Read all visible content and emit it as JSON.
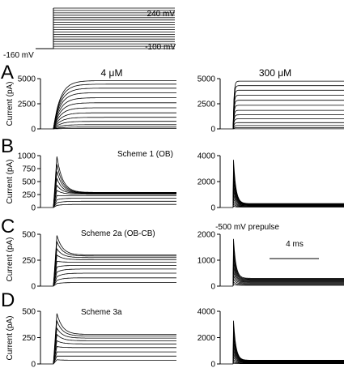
{
  "protocol": {
    "holding_label": "-160 mV",
    "top_label": "240 mV",
    "bottom_label": "-100 mV",
    "n_steps": 18
  },
  "columns": {
    "left_title": "4 μM",
    "right_title": "300 μM"
  },
  "scalebar": {
    "label": "4 ms",
    "duration_ms": 4
  },
  "ylabel": "Current (pA)",
  "chart_data": [
    {
      "type": "line",
      "panel": "A",
      "column": "4 μM",
      "label": "",
      "ylabel": "Current (pA)",
      "yticks": [
        "0",
        "2500",
        "5000"
      ],
      "ylim": [
        0,
        5000
      ],
      "x_ms": [
        0,
        16
      ],
      "traces_ss_pA": [
        4800,
        4450,
        4050,
        3600,
        3100,
        2600,
        2100,
        1600,
        1150,
        750,
        420,
        180,
        40
      ],
      "tau_ms": 0.9
    },
    {
      "type": "line",
      "panel": "A",
      "column": "300 μM",
      "label": "",
      "ylabel": "",
      "yticks": [
        "0",
        "2500",
        "5000"
      ],
      "ylim": [
        0,
        5000
      ],
      "x_ms": [
        0,
        16
      ],
      "traces_ss_pA": [
        4750,
        4300,
        3850,
        3350,
        2850,
        2350,
        1850,
        1400,
        1000,
        620,
        330,
        120,
        10
      ],
      "tau_ms": 0.12
    },
    {
      "type": "line",
      "panel": "B",
      "column": "4 μM",
      "label": "Scheme 1 (OB)",
      "ylabel": "Current (pA)",
      "yticks": [
        "0",
        "250",
        "500",
        "750",
        "1000"
      ],
      "ylim": [
        0,
        1000
      ],
      "x_ms": [
        0,
        16
      ],
      "traces_peak_pA": [
        990,
        840,
        700,
        560,
        430,
        330,
        230,
        150,
        90,
        40
      ],
      "traces_ss_pA": [
        290,
        285,
        280,
        275,
        270,
        255,
        225,
        180,
        120,
        60
      ]
    },
    {
      "type": "line",
      "panel": "B",
      "column": "300 μM",
      "label": "",
      "ylabel": "",
      "yticks": [
        "0",
        "2000",
        "4000"
      ],
      "ylim": [
        0,
        4000
      ],
      "x_ms": [
        0,
        16
      ],
      "traces_peak_pA": [
        3750,
        3300,
        2900,
        2500,
        2100,
        1700,
        1350,
        1000,
        700,
        450,
        250,
        100
      ],
      "traces_ss_pA": [
        300,
        280,
        260,
        240,
        220,
        200,
        180,
        150,
        120,
        90,
        60,
        30
      ]
    },
    {
      "type": "line",
      "panel": "C",
      "column": "4 μM",
      "label": "Scheme 2a (OB-CB)",
      "annotation": "-500 mV prepulse",
      "ylabel": "Current (pA)",
      "yticks": [
        "0",
        "250",
        "500"
      ],
      "ylim": [
        0,
        500
      ],
      "x_ms": [
        0,
        16
      ],
      "traces_peak_pA": [
        490,
        430,
        360,
        300,
        240,
        185,
        135,
        90,
        55,
        25
      ],
      "traces_ss_pA": [
        300,
        290,
        275,
        255,
        230,
        200,
        165,
        125,
        80,
        35
      ]
    },
    {
      "type": "line",
      "panel": "C",
      "column": "300 μM",
      "label": "",
      "ylabel": "",
      "yticks": [
        "0",
        "1000",
        "2000"
      ],
      "ylim": [
        0,
        2000
      ],
      "x_ms": [
        0,
        16
      ],
      "traces_peak_pA": [
        1850,
        1600,
        1380,
        1160,
        950,
        760,
        580,
        420,
        280,
        160,
        70
      ],
      "traces_ss_pA": [
        300,
        275,
        250,
        225,
        200,
        175,
        150,
        120,
        90,
        60,
        30
      ]
    },
    {
      "type": "line",
      "panel": "D",
      "column": "4 μM",
      "label": "Scheme 3a",
      "ylabel": "Current (pA)",
      "yticks": [
        "0",
        "250",
        "500"
      ],
      "ylim": [
        0,
        500
      ],
      "x_ms": [
        0,
        16
      ],
      "traces_peak_pA": [
        480,
        410,
        340,
        280,
        220,
        165,
        115,
        75,
        40
      ],
      "traces_ss_pA": [
        280,
        265,
        245,
        220,
        190,
        155,
        115,
        75,
        35
      ]
    },
    {
      "type": "line",
      "panel": "D",
      "column": "300 μM",
      "label": "",
      "ylabel": "",
      "yticks": [
        "0",
        "2000",
        "4000"
      ],
      "ylim": [
        0,
        4000
      ],
      "x_ms": [
        0,
        16
      ],
      "traces_peak_pA": [
        3350,
        2900,
        2500,
        2100,
        1750,
        1400,
        1080,
        800,
        550,
        330,
        160,
        60
      ],
      "traces_ss_pA": [
        280,
        260,
        240,
        220,
        200,
        180,
        160,
        135,
        110,
        80,
        50,
        25
      ]
    }
  ]
}
